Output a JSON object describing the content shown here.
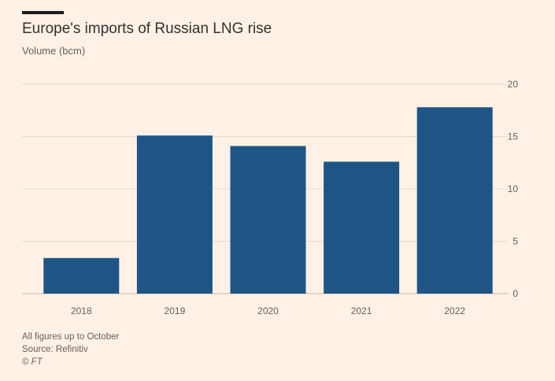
{
  "chart_data": {
    "type": "bar",
    "title": "Europe's imports of Russian LNG rise",
    "ylabel": "Volume (bcm)",
    "categories": [
      "2018",
      "2019",
      "2020",
      "2021",
      "2022"
    ],
    "values": [
      3.4,
      15.1,
      14.1,
      12.6,
      17.8
    ],
    "ylim": [
      0,
      20
    ],
    "yticks": [
      "0",
      "5",
      "10",
      "15",
      "20"
    ],
    "grid": true,
    "bar_color": "#1e5585",
    "grid_color": "#e6d9ce",
    "tick_label_color": "#66605c"
  },
  "footer": {
    "note": "All figures up to October",
    "source": "Source: Refinitiv",
    "credit": "© FT"
  }
}
